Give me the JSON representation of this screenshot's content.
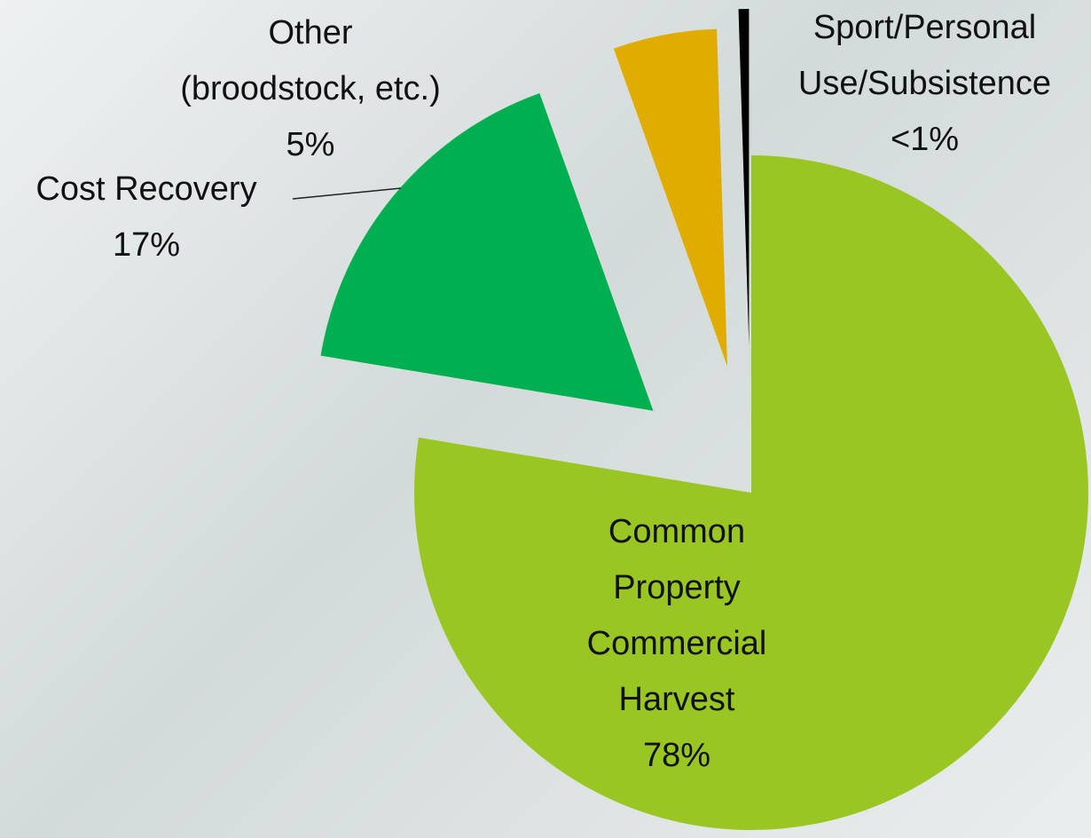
{
  "chart_data": {
    "type": "pie",
    "categories": [
      "Common Property Commercial Harvest",
      "Cost Recovery",
      "Other (broodstock, etc.)",
      "Sport/Personal Use/Subsistence"
    ],
    "values": [
      78,
      17,
      5,
      0.5
    ],
    "value_labels": [
      "78%",
      "17%",
      "5%",
      "<1%"
    ],
    "colors": [
      "#9ac623",
      "#00b050",
      "#e0ac00",
      "#000000"
    ]
  }
}
